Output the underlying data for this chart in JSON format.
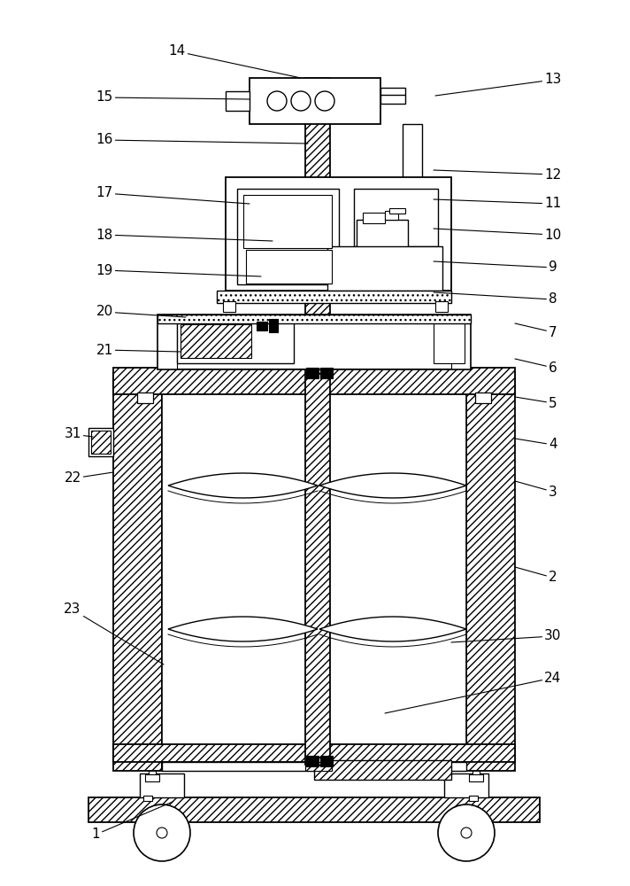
{
  "fig_w": 7.12,
  "fig_h": 10.0,
  "dpi": 100,
  "bg": "#ffffff",
  "labels": [
    [
      1,
      108,
      942,
      195,
      905
    ],
    [
      2,
      625,
      652,
      582,
      640
    ],
    [
      3,
      625,
      555,
      582,
      543
    ],
    [
      4,
      625,
      502,
      582,
      495
    ],
    [
      5,
      625,
      455,
      582,
      448
    ],
    [
      6,
      625,
      415,
      582,
      405
    ],
    [
      7,
      625,
      375,
      582,
      365
    ],
    [
      8,
      625,
      338,
      490,
      330
    ],
    [
      9,
      625,
      302,
      490,
      295
    ],
    [
      10,
      625,
      265,
      490,
      258
    ],
    [
      11,
      625,
      230,
      490,
      225
    ],
    [
      12,
      625,
      197,
      490,
      192
    ],
    [
      13,
      625,
      90,
      492,
      108
    ],
    [
      14,
      200,
      58,
      340,
      88
    ],
    [
      15,
      118,
      110,
      282,
      112
    ],
    [
      16,
      118,
      158,
      348,
      162
    ],
    [
      17,
      118,
      218,
      282,
      230
    ],
    [
      18,
      118,
      265,
      308,
      272
    ],
    [
      19,
      118,
      305,
      295,
      312
    ],
    [
      20,
      118,
      352,
      210,
      358
    ],
    [
      21,
      118,
      395,
      205,
      397
    ],
    [
      22,
      82,
      540,
      128,
      533
    ],
    [
      23,
      82,
      688,
      185,
      750
    ],
    [
      24,
      625,
      765,
      435,
      805
    ],
    [
      30,
      625,
      718,
      510,
      725
    ],
    [
      31,
      82,
      490,
      105,
      493
    ]
  ]
}
